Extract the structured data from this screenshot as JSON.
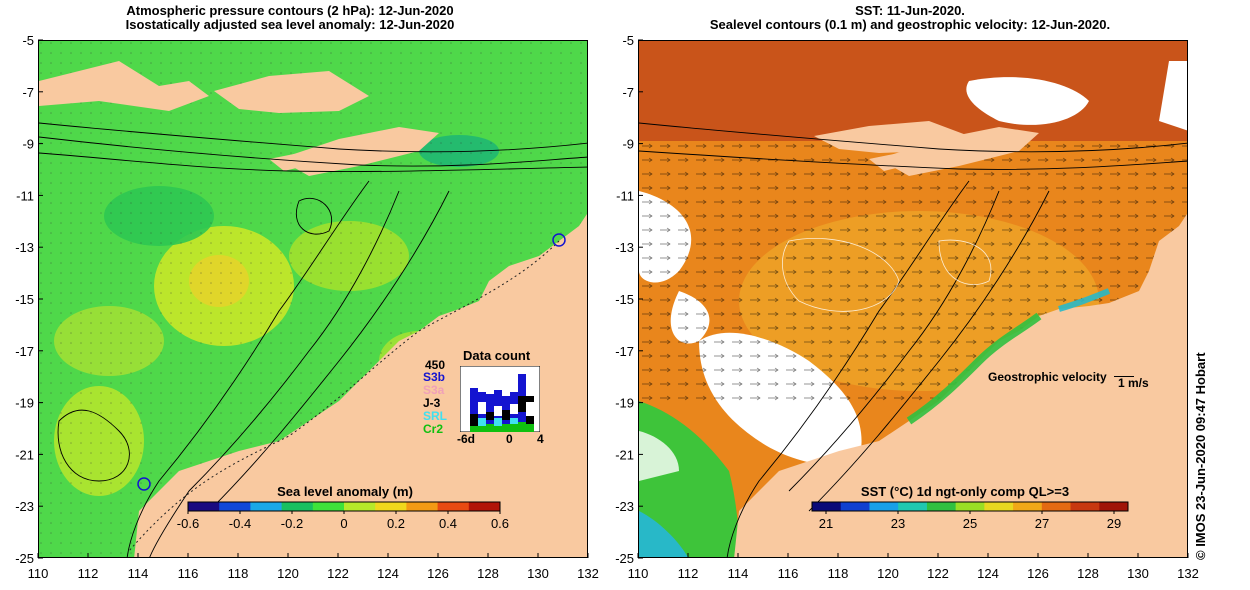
{
  "left_panel": {
    "title_line1": "Atmospheric pressure contours (2 hPa): 12-Jun-2020",
    "title_line2": "Isostatically adjusted sea level anomaly: 12-Jun-2020",
    "colorbar_title": "Sea level anomaly (m)",
    "colorbar_ticks": [
      "-0.6",
      "-0.4",
      "-0.2",
      "0",
      "0.2",
      "0.4",
      "0.6"
    ],
    "colorbar_colors": [
      "#1a0a80",
      "#1248d8",
      "#1aa8e8",
      "#18c060",
      "#3ee23a",
      "#b6ea2a",
      "#f0d81c",
      "#f39a14",
      "#e84a12",
      "#b21408"
    ],
    "data_count": {
      "title": "Data count",
      "max_label": "450",
      "missions": [
        {
          "name": "S3b",
          "color": "#1414d0"
        },
        {
          "name": "S3a",
          "color": "#f0a0b8"
        },
        {
          "name": "J-3",
          "color": "#000000"
        },
        {
          "name": "SRL",
          "color": "#40e0f0"
        },
        {
          "name": "Cr2",
          "color": "#10c010"
        }
      ],
      "x_labels": [
        "-6d",
        "0",
        "4"
      ]
    }
  },
  "right_panel": {
    "title_line1": "SST: 11-Jun-2020.",
    "title_line2": "Sealevel contours (0.1 m) and geostrophic velocity: 12-Jun-2020.",
    "colorbar_title": "SST (°C) 1d ngt-only comp QL>=3",
    "colorbar_ticks": [
      "21",
      "23",
      "25",
      "27",
      "29"
    ],
    "colorbar_colors": [
      "#0a0a78",
      "#1040d0",
      "#18a0e8",
      "#20c8b0",
      "#30c040",
      "#9ade24",
      "#e8d820",
      "#f0a818",
      "#e46a12",
      "#c83810",
      "#a01408"
    ],
    "velocity_label": "Geostrophic velocity",
    "velocity_scale": "1 m/s"
  },
  "axes": {
    "lat_labels": [
      "-5",
      "-7",
      "-9",
      "-11",
      "-13",
      "-15",
      "-17",
      "-19",
      "-21",
      "-23",
      "-25"
    ],
    "lon_labels": [
      "110",
      "112",
      "114",
      "116",
      "118",
      "120",
      "122",
      "124",
      "126",
      "128",
      "130",
      "132"
    ]
  },
  "colors": {
    "land": "#f9c9a0",
    "sea_green": "#4fd84a",
    "sst_orange": "#e9861c",
    "no_data": "#ffffff"
  },
  "copyright": "©  IMOS 23-Jun-2020 09:47 Hobart"
}
